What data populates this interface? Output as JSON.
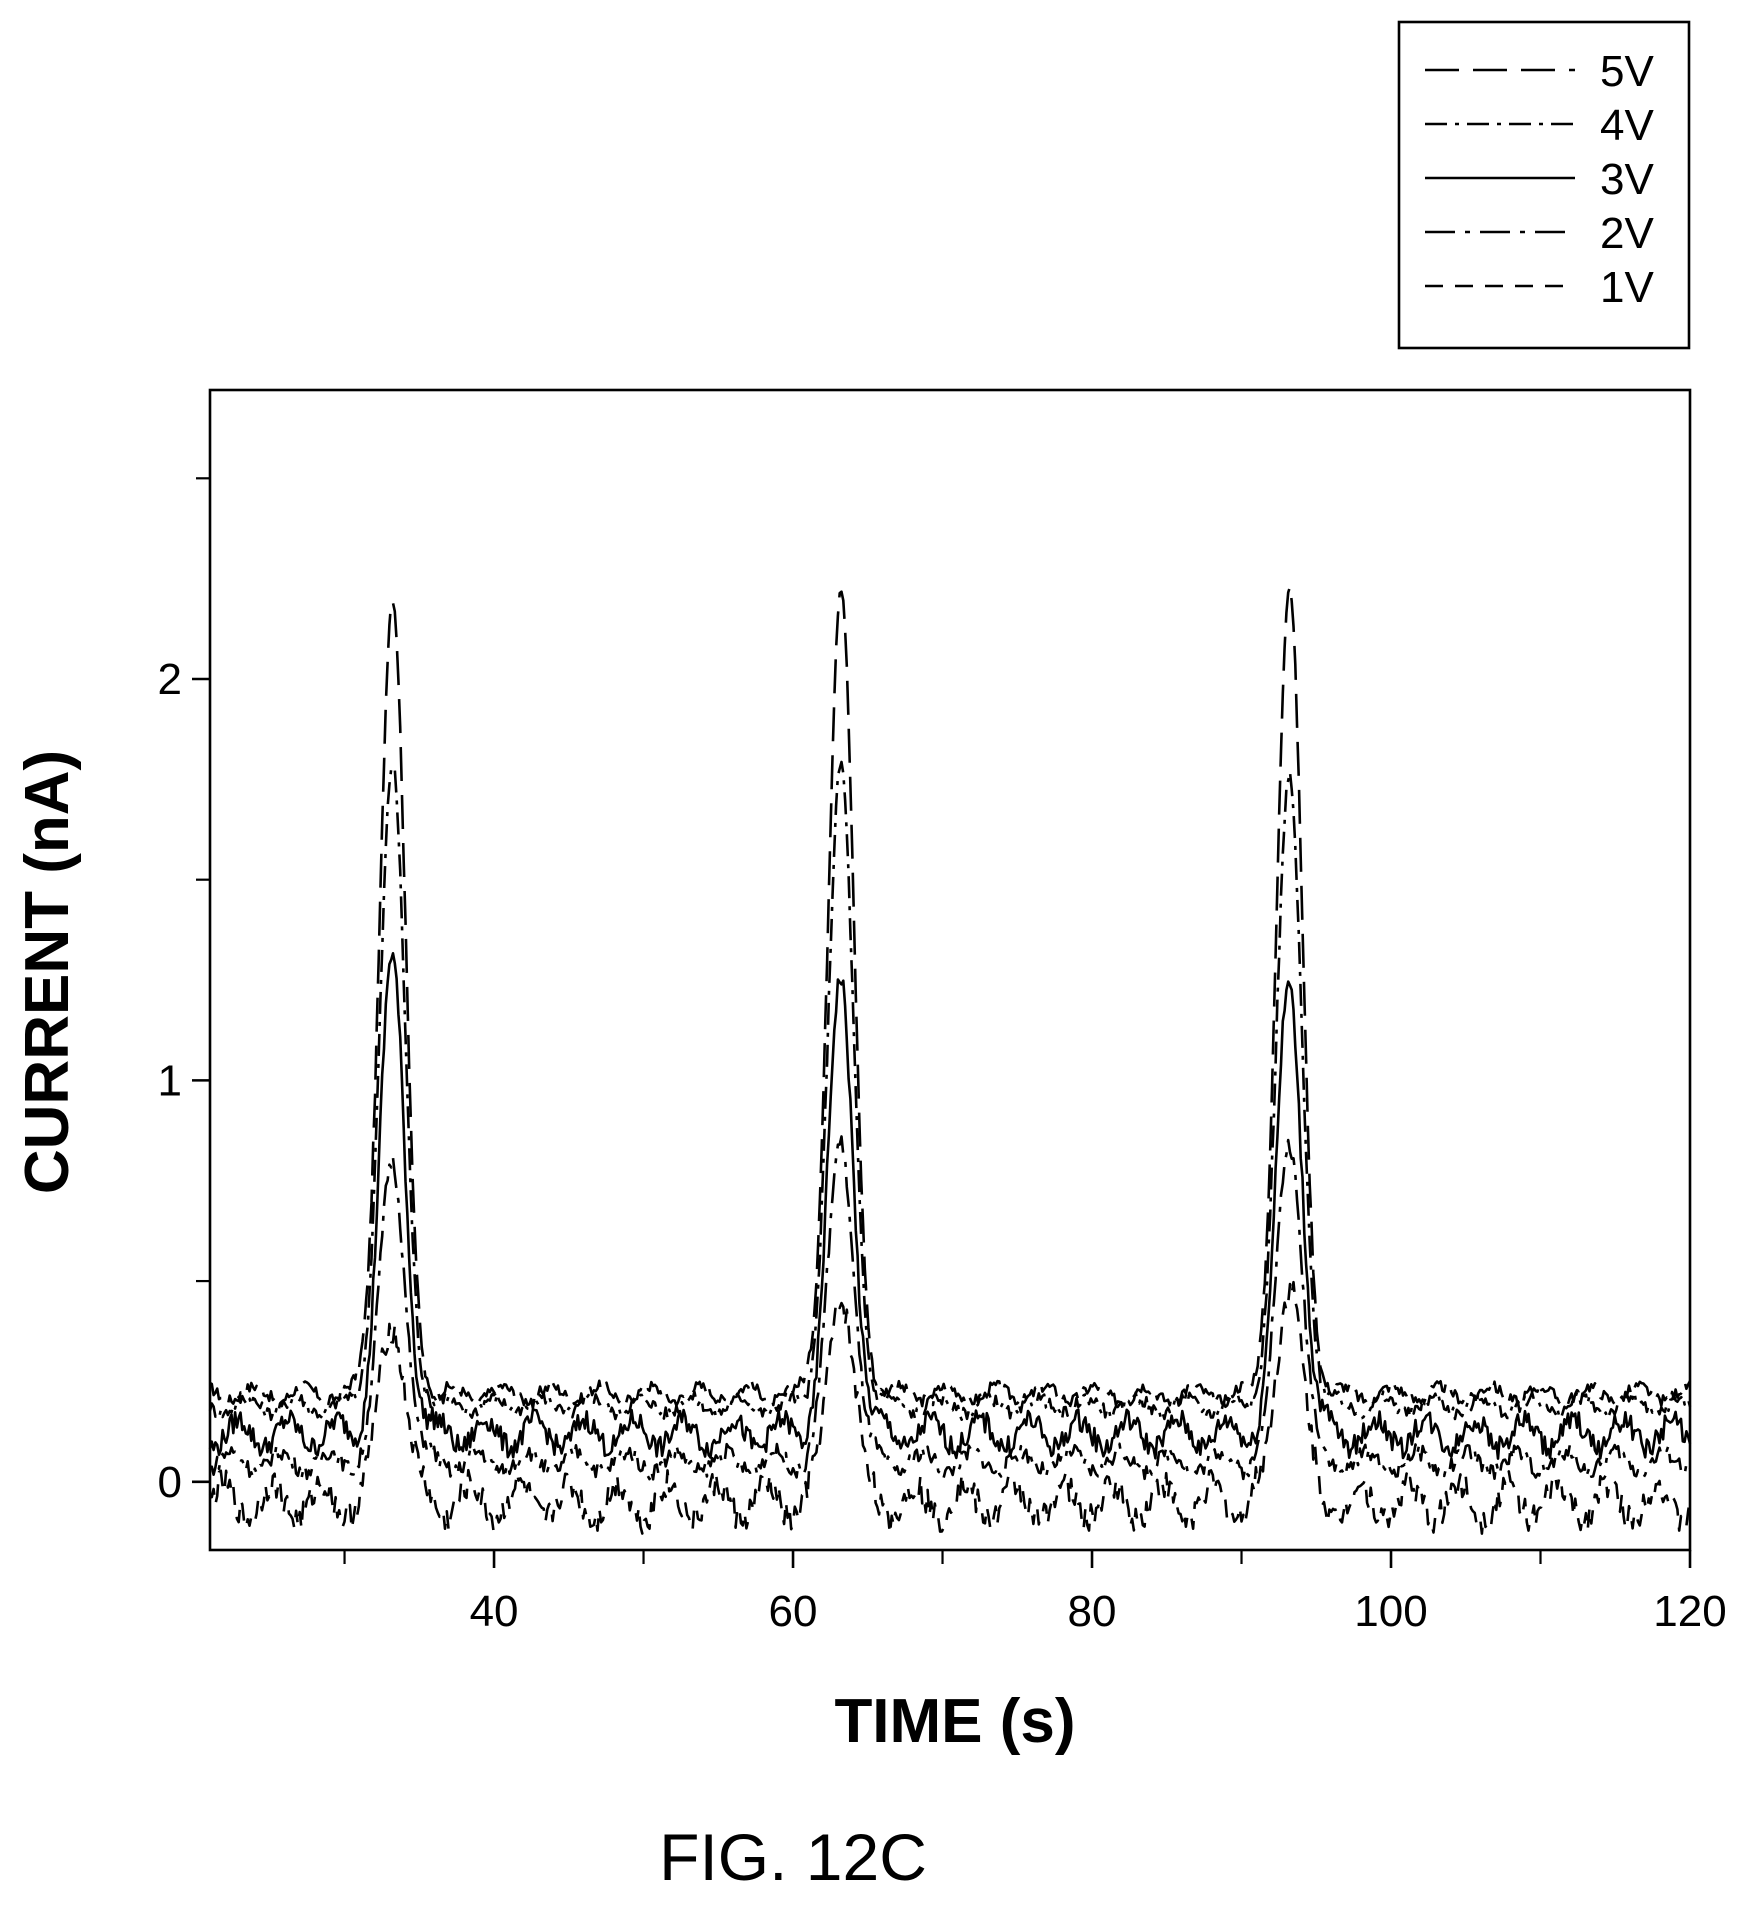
{
  "caption": "FIG. 12C",
  "chart_data": {
    "type": "line",
    "title": "",
    "xlabel": "TIME (s)",
    "ylabel": "CURRENT (nA)",
    "xlim": [
      21,
      120
    ],
    "ylim": [
      -0.17,
      2.72
    ],
    "xticks_labeled": [
      40,
      60,
      80,
      100,
      120
    ],
    "xticks_minor": [
      30,
      50,
      70,
      90,
      110
    ],
    "yticks_labeled": [
      0,
      1,
      2
    ],
    "yticks_minor": [
      0.5,
      1.5,
      2.5
    ],
    "grid": false,
    "legend_position": "top-right, outside plot",
    "peak_times": [
      33.2,
      63.2,
      93.2
    ],
    "series": [
      {
        "name": "5V",
        "dash": "long-dash",
        "baseline": 0.22,
        "peaks": [
          2.2,
          2.22,
          2.22
        ]
      },
      {
        "name": "4V",
        "dash": "dash-dot",
        "baseline": 0.19,
        "peaks": [
          1.77,
          1.77,
          1.74
        ]
      },
      {
        "name": "3V",
        "dash": "solid",
        "baseline": 0.12,
        "peaks": [
          1.29,
          1.24,
          1.24
        ]
      },
      {
        "name": "2V",
        "dash": "dash-dot-long",
        "baseline": 0.05,
        "peaks": [
          0.8,
          0.86,
          0.86
        ]
      },
      {
        "name": "1V",
        "dash": "dashed",
        "baseline": -0.05,
        "peaks": [
          0.42,
          0.49,
          0.52
        ]
      }
    ]
  }
}
